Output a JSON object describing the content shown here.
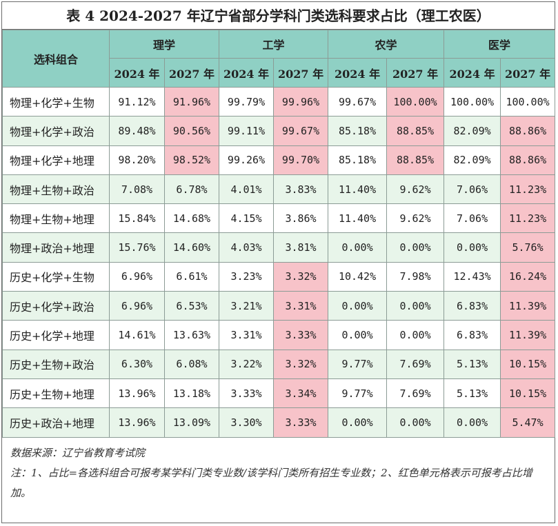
{
  "title": "表 4 2024-2027 年辽宁省部分学科门类选科要求占比（理工农医）",
  "header": {
    "combo_label": "选科组合",
    "categories": [
      "理学",
      "工学",
      "农学",
      "医学"
    ],
    "years": [
      "2024 年",
      "2027 年"
    ]
  },
  "rows": [
    {
      "combo": "物理+化学+生物",
      "values": [
        "91.12%",
        "91.96%",
        "99.79%",
        "99.96%",
        "99.67%",
        "100.00%",
        "100.00%",
        "100.00%"
      ],
      "highlight": [
        false,
        true,
        false,
        true,
        false,
        true,
        false,
        false
      ]
    },
    {
      "combo": "物理+化学+政治",
      "values": [
        "89.48%",
        "90.56%",
        "99.11%",
        "99.67%",
        "85.18%",
        "88.85%",
        "82.09%",
        "88.86%"
      ],
      "highlight": [
        false,
        true,
        false,
        true,
        false,
        true,
        false,
        true
      ]
    },
    {
      "combo": "物理+化学+地理",
      "values": [
        "98.20%",
        "98.52%",
        "99.26%",
        "99.70%",
        "85.18%",
        "88.85%",
        "82.09%",
        "88.86%"
      ],
      "highlight": [
        false,
        true,
        false,
        true,
        false,
        true,
        false,
        true
      ]
    },
    {
      "combo": "物理+生物+政治",
      "values": [
        "7.08%",
        "6.78%",
        "4.01%",
        "3.83%",
        "11.40%",
        "9.62%",
        "7.06%",
        "11.23%"
      ],
      "highlight": [
        false,
        false,
        false,
        false,
        false,
        false,
        false,
        true
      ]
    },
    {
      "combo": "物理+生物+地理",
      "values": [
        "15.84%",
        "14.68%",
        "4.15%",
        "3.86%",
        "11.40%",
        "9.62%",
        "7.06%",
        "11.23%"
      ],
      "highlight": [
        false,
        false,
        false,
        false,
        false,
        false,
        false,
        true
      ]
    },
    {
      "combo": "物理+政治+地理",
      "values": [
        "15.76%",
        "14.60%",
        "4.03%",
        "3.81%",
        "0.00%",
        "0.00%",
        "0.00%",
        "5.76%"
      ],
      "highlight": [
        false,
        false,
        false,
        false,
        false,
        false,
        false,
        true
      ]
    },
    {
      "combo": "历史+化学+生物",
      "values": [
        "6.96%",
        "6.61%",
        "3.23%",
        "3.32%",
        "10.42%",
        "7.98%",
        "12.43%",
        "16.24%"
      ],
      "highlight": [
        false,
        false,
        false,
        true,
        false,
        false,
        false,
        true
      ]
    },
    {
      "combo": "历史+化学+政治",
      "values": [
        "6.96%",
        "6.53%",
        "3.21%",
        "3.31%",
        "0.00%",
        "0.00%",
        "6.83%",
        "11.39%"
      ],
      "highlight": [
        false,
        false,
        false,
        true,
        false,
        false,
        false,
        true
      ]
    },
    {
      "combo": "历史+化学+地理",
      "values": [
        "14.61%",
        "13.63%",
        "3.31%",
        "3.33%",
        "0.00%",
        "0.00%",
        "6.83%",
        "11.39%"
      ],
      "highlight": [
        false,
        false,
        false,
        true,
        false,
        false,
        false,
        true
      ]
    },
    {
      "combo": "历史+生物+政治",
      "values": [
        "6.30%",
        "6.08%",
        "3.22%",
        "3.32%",
        "9.77%",
        "7.69%",
        "5.13%",
        "10.15%"
      ],
      "highlight": [
        false,
        false,
        false,
        true,
        false,
        false,
        false,
        true
      ]
    },
    {
      "combo": "历史+生物+地理",
      "values": [
        "13.96%",
        "13.18%",
        "3.33%",
        "3.34%",
        "9.77%",
        "7.69%",
        "5.13%",
        "10.15%"
      ],
      "highlight": [
        false,
        false,
        false,
        true,
        false,
        false,
        false,
        true
      ]
    },
    {
      "combo": "历史+政治+地理",
      "values": [
        "13.96%",
        "13.09%",
        "3.30%",
        "3.33%",
        "0.00%",
        "0.00%",
        "0.00%",
        "5.47%"
      ],
      "highlight": [
        false,
        false,
        false,
        true,
        false,
        false,
        false,
        true
      ]
    }
  ],
  "colors": {
    "header_bg": "#8fd0c4",
    "alt_row_bg": "#e8f5ea",
    "highlight_bg": "#f7c3c9"
  },
  "notes": {
    "source": "数据来源：辽宁省教育考试院",
    "note": "注：1、占比=各选科组合可报考某学科门类专业数/该学科门类所有招生专业数；2、红色单元格表示可报考占比增加。"
  }
}
